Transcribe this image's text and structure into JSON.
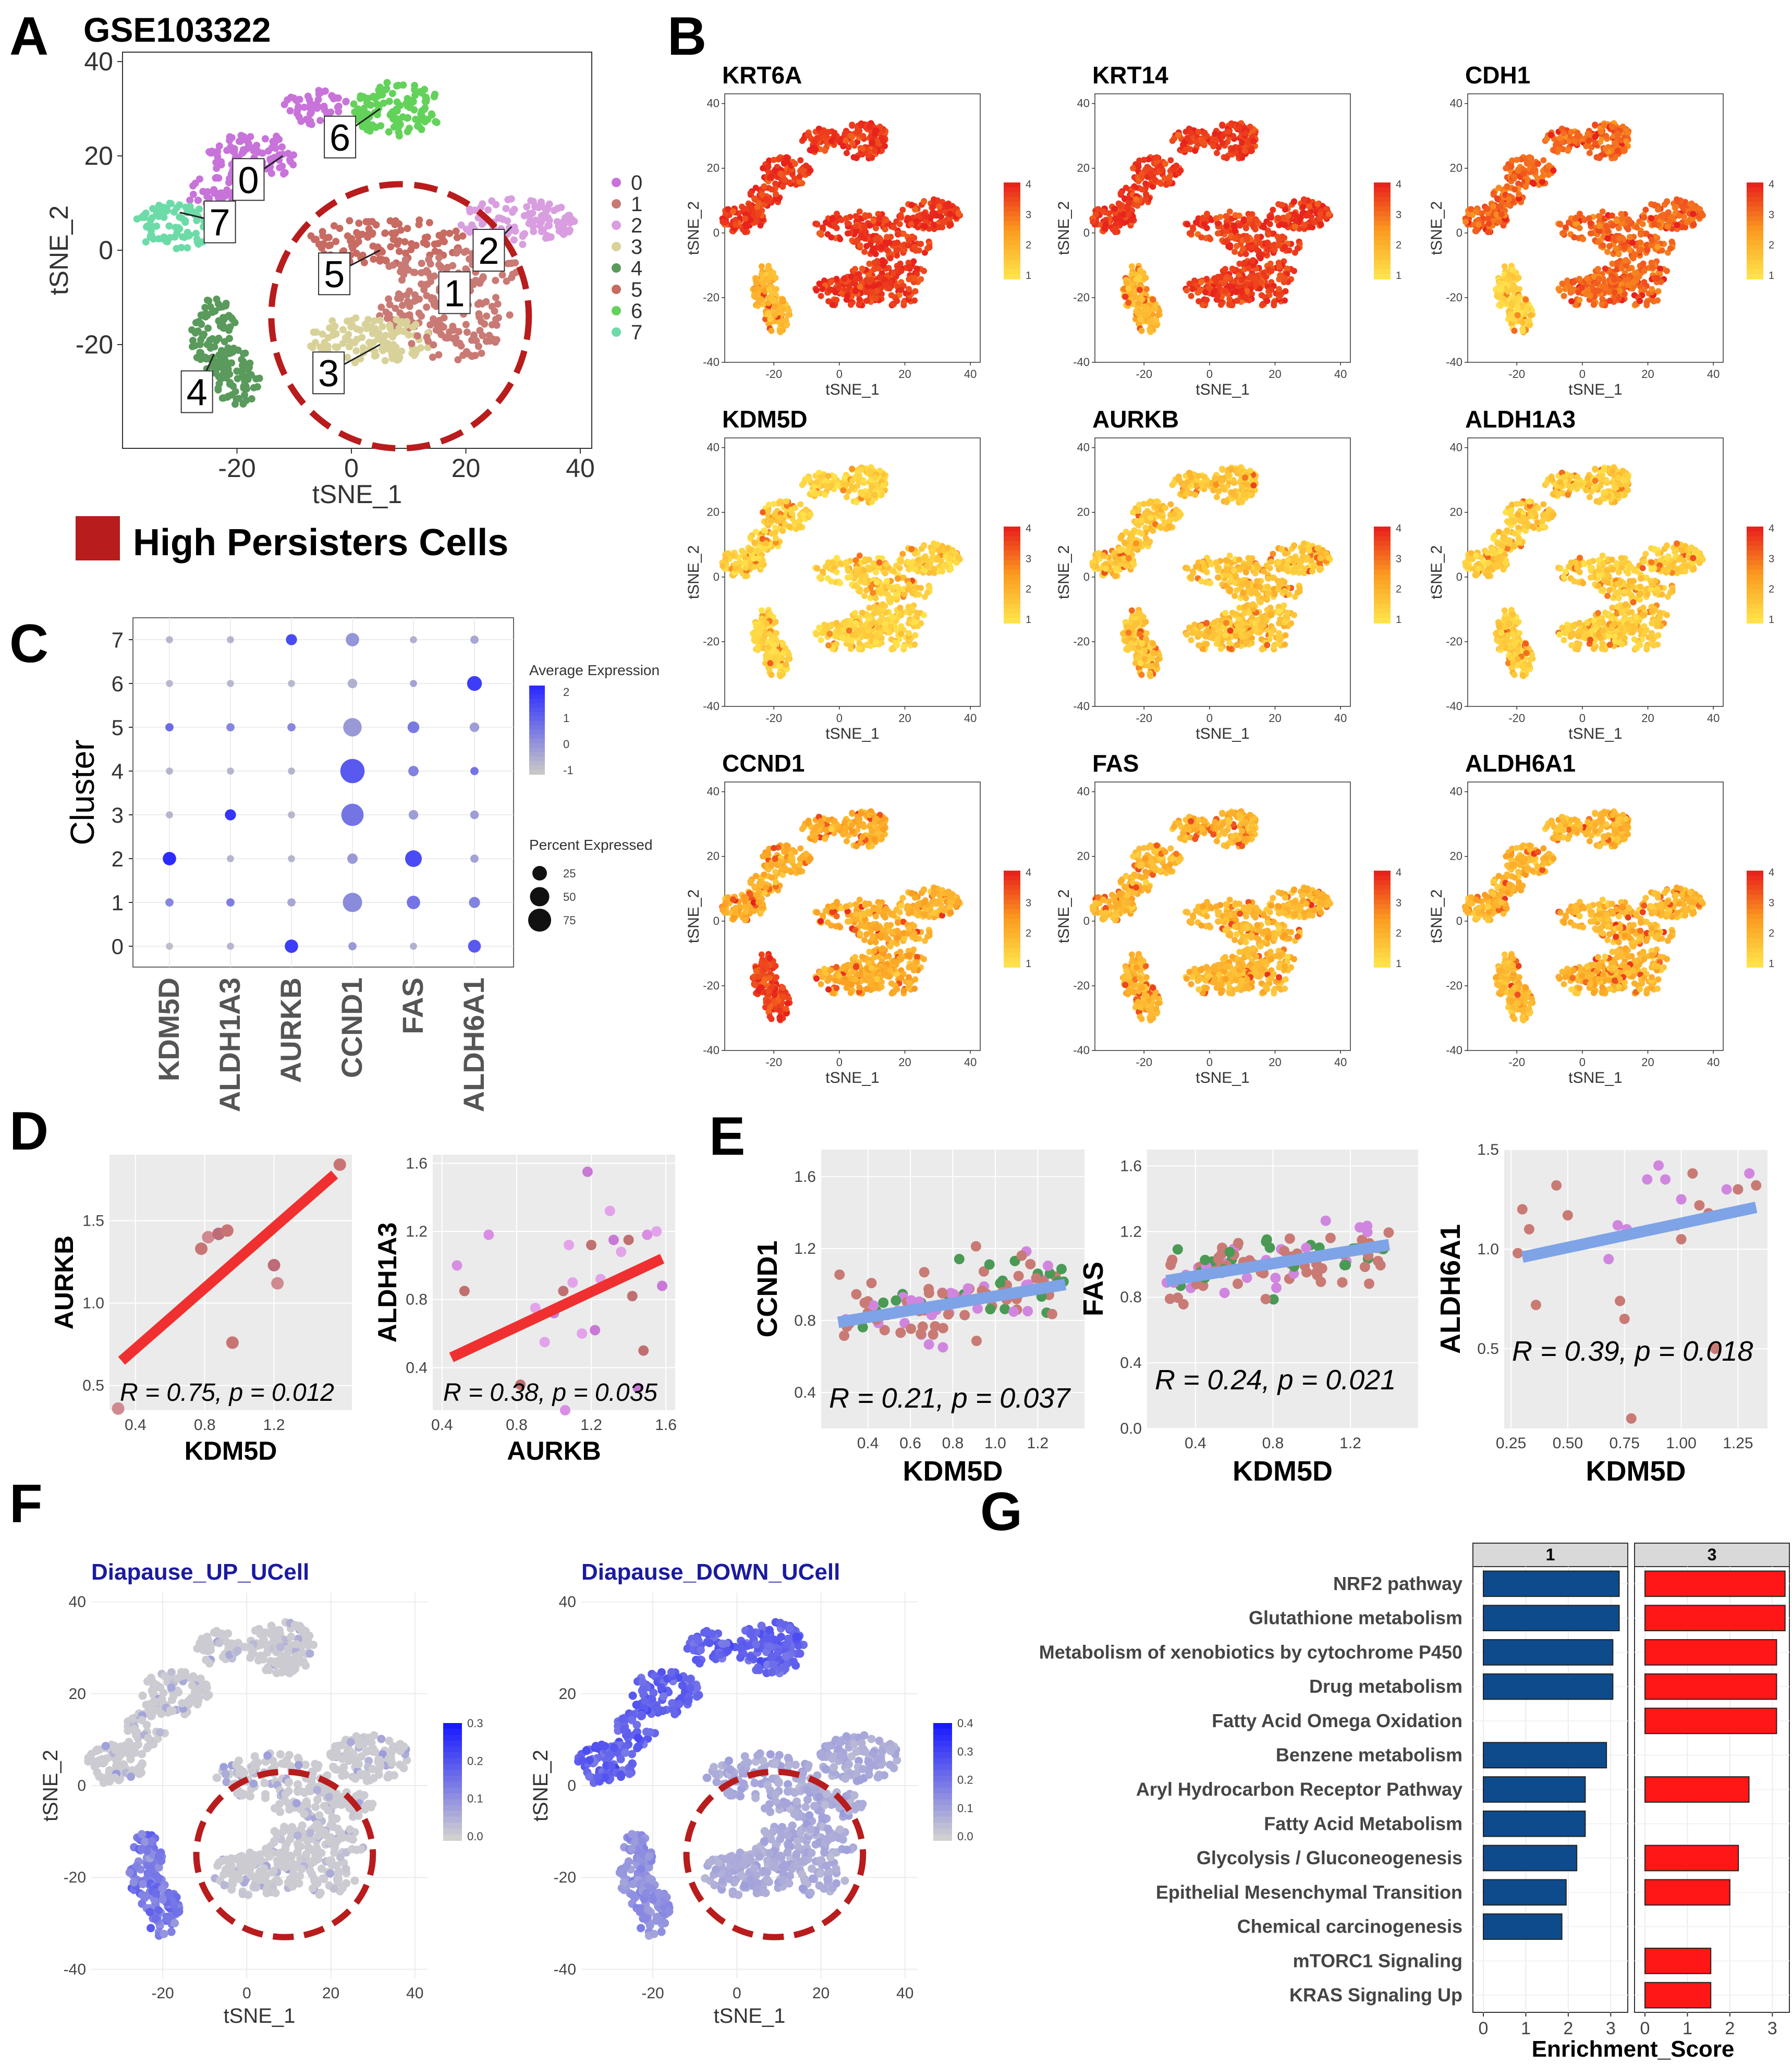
{
  "figure": {
    "panel_labels": [
      "A",
      "B",
      "C",
      "D",
      "E",
      "F",
      "G"
    ],
    "colors": {
      "cluster": [
        "#c873d9",
        "#c97a74",
        "#d99ee0",
        "#d8d29a",
        "#5a9a5c",
        "#c86b62",
        "#63d25a",
        "#6ddba8"
      ],
      "persister_red": "#b81c1c",
      "heat_low": "#ffe24a",
      "heat_mid": "#fb9b20",
      "heat_high": "#e8221c",
      "dot_low": "#c7c7c7",
      "dot_high": "#2b2bff",
      "ucell_low": "#d0d0d0",
      "ucell_high": "#1a1aff",
      "fit_red": "#f03030",
      "fit_blue": "#7ea3e6",
      "bar_blue": "#0e4b8c",
      "bar_red": "#ff1616",
      "panel_bg": "#ebebeb",
      "grid": "#ffffff",
      "strip_bg": "#d9d9d9"
    }
  },
  "chart_data": [
    {
      "id": "A",
      "type": "scatter",
      "title": "GSE103322",
      "xlabel": "tSNE_1",
      "ylabel": "tSNE_2",
      "xlim": [
        -40,
        42
      ],
      "ylim": [
        -42,
        42
      ],
      "xticks": [
        -20,
        0,
        20,
        40
      ],
      "yticks": [
        -20,
        0,
        20,
        40
      ],
      "clusters": [
        {
          "name": "0",
          "center": [
            -12,
            20
          ],
          "labelpos": [
            -18,
            15
          ]
        },
        {
          "name": "1",
          "center": [
            17,
            -8
          ],
          "labelpos": [
            18,
            -9
          ]
        },
        {
          "name": "2",
          "center": [
            28,
            5
          ],
          "labelpos": [
            24,
            0
          ]
        },
        {
          "name": "3",
          "center": [
            5,
            -20
          ],
          "labelpos": [
            -4,
            -26
          ]
        },
        {
          "name": "4",
          "center": [
            -24,
            -22
          ],
          "labelpos": [
            -27,
            -30
          ]
        },
        {
          "name": "5",
          "center": [
            5,
            0
          ],
          "labelpos": [
            -3,
            -5
          ]
        },
        {
          "name": "6",
          "center": [
            5,
            30
          ],
          "labelpos": [
            -2,
            24
          ]
        },
        {
          "name": "7",
          "center": [
            -30,
            8
          ],
          "labelpos": [
            -23,
            6
          ]
        }
      ],
      "legend": [
        "0",
        "1",
        "2",
        "3",
        "4",
        "5",
        "6",
        "7"
      ],
      "highlight_legend": "High Persisters Cells"
    },
    {
      "id": "B",
      "type": "scatter",
      "xlabel": "tSNE_1",
      "ylabel": "tSNE_2",
      "xlim": [
        -35,
        43
      ],
      "ylim": [
        -40,
        43
      ],
      "xticks": [
        -20,
        0,
        20,
        40
      ],
      "yticks": [
        -40,
        -20,
        0,
        20,
        40
      ],
      "colorbar_ticks": [
        "4",
        "3",
        "2",
        "1"
      ],
      "genes": [
        {
          "name": "KRT6A",
          "level": 0.9
        },
        {
          "name": "KRT14",
          "level": 0.88
        },
        {
          "name": "CDH1",
          "level": 0.7
        },
        {
          "name": "KDM5D",
          "level": 0.1
        },
        {
          "name": "AURKB",
          "level": 0.2
        },
        {
          "name": "ALDH1A3",
          "level": 0.15
        },
        {
          "name": "CCND1",
          "level": 0.35
        },
        {
          "name": "FAS",
          "level": 0.3
        },
        {
          "name": "ALDH6A1",
          "level": 0.3
        }
      ]
    },
    {
      "id": "C",
      "type": "dot",
      "ylabel": "Cluster",
      "genes": [
        "KDM5D",
        "ALDH1A3",
        "AURKB",
        "CCND1",
        "FAS",
        "ALDH6A1"
      ],
      "clusters": [
        "0",
        "1",
        "2",
        "3",
        "4",
        "5",
        "6",
        "7"
      ],
      "avg_expression": [
        [
          -1.0,
          -0.8,
          1.8,
          -0.2,
          -0.7,
          1.2
        ],
        [
          0.2,
          0.4,
          -0.5,
          0.1,
          0.6,
          0.3
        ],
        [
          2.2,
          -0.8,
          -0.8,
          -0.2,
          1.5,
          -0.4
        ],
        [
          -0.8,
          2.0,
          -0.8,
          0.6,
          -0.3,
          -0.3
        ],
        [
          -0.8,
          -0.8,
          -0.8,
          1.2,
          0.3,
          0.6
        ],
        [
          0.8,
          0.2,
          0.2,
          -0.2,
          0.5,
          -0.3
        ],
        [
          -0.9,
          -0.9,
          -0.9,
          -0.7,
          -0.4,
          1.8
        ],
        [
          -0.8,
          -0.8,
          1.5,
          -0.1,
          -0.7,
          -0.5
        ]
      ],
      "pct_expressed": [
        [
          3,
          3,
          20,
          5,
          3,
          18
        ],
        [
          5,
          5,
          5,
          50,
          20,
          12
        ],
        [
          20,
          3,
          3,
          10,
          35,
          5
        ],
        [
          3,
          12,
          3,
          70,
          8,
          6
        ],
        [
          3,
          3,
          3,
          85,
          10,
          5
        ],
        [
          5,
          5,
          5,
          45,
          14,
          8
        ],
        [
          3,
          3,
          3,
          8,
          3,
          26
        ],
        [
          3,
          3,
          12,
          20,
          3,
          5
        ]
      ],
      "legend_avg_title": "Average Expression",
      "legend_avg_ticks": [
        "2",
        "1",
        "0",
        "-1"
      ],
      "legend_pct_title": "Percent Expressed",
      "legend_pct_ticks": [
        "25",
        "50",
        "75"
      ]
    },
    {
      "id": "D1",
      "type": "scatter",
      "xlabel": "KDM5D",
      "ylabel": "AURKB",
      "xlim": [
        0.25,
        1.65
      ],
      "ylim": [
        0.35,
        1.9
      ],
      "xticks": [
        "0.4",
        "0.8",
        "1.2"
      ],
      "yticks": [
        "0.5",
        "1.0",
        "1.5"
      ],
      "points": [
        [
          0.3,
          0.36
        ],
        [
          0.78,
          1.33
        ],
        [
          0.82,
          1.4
        ],
        [
          0.88,
          1.42
        ],
        [
          0.93,
          1.44
        ],
        [
          0.96,
          0.76
        ],
        [
          1.2,
          1.23
        ],
        [
          1.22,
          1.12
        ],
        [
          1.58,
          1.84
        ]
      ],
      "fit": [
        [
          0.32,
          0.65
        ],
        [
          1.55,
          1.78
        ]
      ],
      "annotation": "R = 0.75, p = 0.012"
    },
    {
      "id": "D2",
      "type": "scatter",
      "xlabel": "AURKB",
      "ylabel": "ALDH1A3",
      "xlim": [
        0.35,
        1.65
      ],
      "ylim": [
        0.15,
        1.65
      ],
      "xticks": [
        "0.4",
        "0.8",
        "1.2",
        "1.6"
      ],
      "yticks": [
        "0.4",
        "0.8",
        "1.2",
        "1.6"
      ],
      "points": [
        [
          0.48,
          1.0
        ],
        [
          0.52,
          0.85
        ],
        [
          0.65,
          1.18
        ],
        [
          0.82,
          0.3
        ],
        [
          0.9,
          0.75
        ],
        [
          0.95,
          0.55
        ],
        [
          1.0,
          0.72
        ],
        [
          1.05,
          0.85
        ],
        [
          1.06,
          0.15
        ],
        [
          1.08,
          1.12
        ],
        [
          1.1,
          0.9
        ],
        [
          1.15,
          0.6
        ],
        [
          1.18,
          1.55
        ],
        [
          1.2,
          1.12
        ],
        [
          1.22,
          0.62
        ],
        [
          1.25,
          0.92
        ],
        [
          1.3,
          1.32
        ],
        [
          1.32,
          1.15
        ],
        [
          1.36,
          1.08
        ],
        [
          1.4,
          1.15
        ],
        [
          1.42,
          0.82
        ],
        [
          1.45,
          0.28
        ],
        [
          1.48,
          0.5
        ],
        [
          1.5,
          1.18
        ],
        [
          1.55,
          1.2
        ],
        [
          1.58,
          0.88
        ]
      ],
      "fit": [
        [
          0.45,
          0.46
        ],
        [
          1.58,
          1.04
        ]
      ],
      "annotation": "R = 0.38, p = 0.035"
    },
    {
      "id": "E1",
      "type": "scatter",
      "xlabel": "KDM5D",
      "ylabel": "CCND1",
      "xlim": [
        0.18,
        1.42
      ],
      "ylim": [
        0.2,
        1.75
      ],
      "xticks": [
        "0.4",
        "0.6",
        "0.8",
        "1.0",
        "1.2"
      ],
      "yticks": [
        "0.4",
        "0.8",
        "1.2",
        "1.6"
      ],
      "fit": [
        [
          0.26,
          0.79
        ],
        [
          1.33,
          1.0
        ]
      ],
      "annotation": "R = 0.21, p = 0.037"
    },
    {
      "id": "E2",
      "type": "scatter",
      "xlabel": "KDM5D",
      "ylabel": "FAS",
      "xlim": [
        0.15,
        1.55
      ],
      "ylim": [
        0.0,
        1.7
      ],
      "xticks": [
        "0.4",
        "0.8",
        "1.2"
      ],
      "yticks": [
        "0.0",
        "0.4",
        "0.8",
        "1.2",
        "1.6"
      ],
      "fit": [
        [
          0.25,
          0.9
        ],
        [
          1.4,
          1.12
        ]
      ],
      "annotation": "R = 0.24, p = 0.021"
    },
    {
      "id": "E3",
      "type": "scatter",
      "xlabel": "KDM5D",
      "ylabel": "ALDH6A1",
      "xlim": [
        0.22,
        1.38
      ],
      "ylim": [
        0.1,
        1.5
      ],
      "xticks": [
        "0.25",
        "0.50",
        "0.75",
        "1.00",
        "1.25"
      ],
      "yticks": [
        "0.5",
        "1.0",
        "1.5"
      ],
      "points": [
        [
          0.28,
          0.98
        ],
        [
          0.3,
          1.2
        ],
        [
          0.33,
          1.1
        ],
        [
          0.36,
          0.72
        ],
        [
          0.45,
          1.32
        ],
        [
          0.5,
          1.17
        ],
        [
          0.68,
          0.95
        ],
        [
          0.73,
          0.74
        ],
        [
          0.75,
          0.65
        ],
        [
          0.72,
          1.12
        ],
        [
          0.76,
          1.1
        ],
        [
          0.78,
          0.15
        ],
        [
          0.85,
          1.35
        ],
        [
          0.9,
          1.42
        ],
        [
          0.93,
          1.35
        ],
        [
          0.98,
          1.12
        ],
        [
          1.0,
          1.05
        ],
        [
          1.05,
          1.38
        ],
        [
          1.08,
          1.22
        ],
        [
          1.12,
          1.18
        ],
        [
          1.15,
          0.5
        ],
        [
          1.2,
          1.3
        ],
        [
          1.25,
          1.3
        ],
        [
          1.3,
          1.38
        ],
        [
          1.33,
          1.32
        ],
        [
          1.0,
          1.25
        ]
      ],
      "fit": [
        [
          0.3,
          0.96
        ],
        [
          1.33,
          1.21
        ]
      ],
      "annotation": "R = 0.39, p = 0.018"
    },
    {
      "id": "F",
      "type": "scatter",
      "xlabel": "tSNE_1",
      "ylabel": "tSNE_2",
      "xlim": [
        -37,
        43
      ],
      "ylim": [
        -42,
        42
      ],
      "xticks": [
        -20,
        0,
        20,
        40
      ],
      "yticks": [
        -40,
        -20,
        0,
        20,
        40
      ],
      "plots": [
        {
          "title": "Diapause_UP_UCell",
          "colorbar_ticks": [
            "0.3",
            "0.2",
            "0.1",
            "0.0"
          ]
        },
        {
          "title": "Diapause_DOWN_UCell",
          "colorbar_ticks": [
            "0.4",
            "0.3",
            "0.2",
            "0.1",
            "0.0"
          ]
        }
      ]
    },
    {
      "id": "G",
      "type": "bar",
      "xlabel": "Enrichment_Score",
      "facets": [
        "1",
        "3"
      ],
      "xticks": [
        "0",
        "1",
        "2",
        "3"
      ],
      "xlim": [
        0,
        3.5
      ],
      "categories": [
        "NRF2 pathway",
        "Glutathione metabolism",
        "Metabolism of xenobiotics by cytochrome P450",
        "Drug metabolism",
        "Fatty Acid Omega Oxidation",
        "Benzene metabolism",
        "Aryl Hydrocarbon Receptor Pathway",
        "Fatty Acid Metabolism",
        "Glycolysis / Gluconeogenesis",
        "Epithelial Mesenchymal Transition",
        "Chemical carcinogenesis",
        "mTORC1 Signaling",
        "KRAS Signaling Up"
      ],
      "series": [
        {
          "name": "1",
          "values": [
            3.2,
            3.2,
            3.05,
            3.05,
            0,
            2.9,
            2.4,
            2.4,
            2.2,
            1.95,
            1.85,
            0,
            0
          ]
        },
        {
          "name": "3",
          "values": [
            3.3,
            3.3,
            3.1,
            3.1,
            3.1,
            0,
            2.45,
            0,
            2.2,
            2.0,
            0,
            1.55,
            1.55
          ]
        }
      ]
    }
  ]
}
